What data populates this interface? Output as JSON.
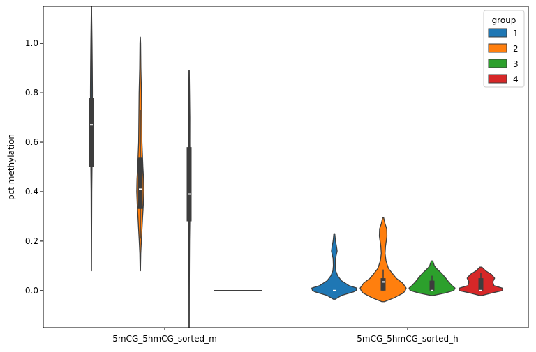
{
  "chart_data": {
    "type": "violin",
    "title": "",
    "xlabel": "",
    "ylabel": "pct methylation",
    "ylim": [
      -0.15,
      1.15
    ],
    "yticks": [
      0.0,
      0.2,
      0.4,
      0.6,
      0.8,
      1.0
    ],
    "ytick_labels": [
      "0.0",
      "0.2",
      "0.4",
      "0.6",
      "0.8",
      "1.0"
    ],
    "categories": [
      "5mCG_5hmCG_sorted_m",
      "5mCG_5hmCG_sorted_h"
    ],
    "legend": {
      "title": "group",
      "location": "upper right",
      "entries": [
        "1",
        "2",
        "3",
        "4"
      ]
    },
    "series": [
      {
        "name": "1",
        "color": "#1f77b4",
        "violins": [
          {
            "category": "5mCG_5hmCG_sorted_m",
            "min": 0.08,
            "q1": 0.5,
            "median": 0.67,
            "q3": 0.78,
            "whisker_low": 0.25,
            "whisker_high": 1.15,
            "profile": [
              [
                0.08,
                0.004
              ],
              [
                0.2,
                0.008
              ],
              [
                0.3,
                0.012
              ],
              [
                0.4,
                0.015
              ],
              [
                0.5,
                0.026
              ],
              [
                0.6,
                0.032
              ],
              [
                0.7,
                0.038
              ],
              [
                0.8,
                0.042
              ],
              [
                0.9,
                0.036
              ],
              [
                1.0,
                0.026
              ],
              [
                1.1,
                0.012
              ],
              [
                1.15,
                0.006
              ]
            ]
          },
          {
            "category": "5mCG_5hmCG_sorted_h",
            "min": -0.035,
            "q1": 0.0,
            "median": 0.0,
            "q3": 0.0,
            "whisker_low": 0.0,
            "whisker_high": 0.0,
            "profile": [
              [
                -0.035,
                0.04
              ],
              [
                -0.02,
                0.3
              ],
              [
                -0.005,
                0.82
              ],
              [
                0.0,
                0.92
              ],
              [
                0.01,
                0.95
              ],
              [
                0.02,
                0.62
              ],
              [
                0.04,
                0.3
              ],
              [
                0.06,
                0.14
              ],
              [
                0.08,
                0.06
              ],
              [
                0.1,
                0.04
              ],
              [
                0.13,
                0.05
              ],
              [
                0.16,
                0.12
              ],
              [
                0.18,
                0.09
              ],
              [
                0.2,
                0.05
              ],
              [
                0.23,
                0.02
              ]
            ]
          }
        ]
      },
      {
        "name": "2",
        "color": "#ff7f0e",
        "violins": [
          {
            "category": "5mCG_5hmCG_sorted_m",
            "min": 0.08,
            "q1": 0.33,
            "median": 0.41,
            "q3": 0.54,
            "whisker_low": 0.21,
            "whisker_high": 0.73,
            "profile": [
              [
                0.08,
                0.008
              ],
              [
                0.15,
                0.02
              ],
              [
                0.21,
                0.05
              ],
              [
                0.3,
                0.1
              ],
              [
                0.35,
                0.13
              ],
              [
                0.4,
                0.15
              ],
              [
                0.45,
                0.14
              ],
              [
                0.5,
                0.11
              ],
              [
                0.55,
                0.09
              ],
              [
                0.6,
                0.07
              ],
              [
                0.7,
                0.06
              ],
              [
                0.8,
                0.05
              ],
              [
                0.9,
                0.025
              ],
              [
                1.0,
                0.015
              ],
              [
                1.025,
                0.004
              ]
            ]
          },
          {
            "category": "5mCG_5hmCG_sorted_h",
            "min": -0.045,
            "q1": 0.0,
            "median": 0.035,
            "q3": 0.05,
            "whisker_low": 0.0,
            "whisker_high": 0.085,
            "profile": [
              [
                -0.045,
                0.05
              ],
              [
                -0.03,
                0.45
              ],
              [
                -0.01,
                0.85
              ],
              [
                0.0,
                0.93
              ],
              [
                0.01,
                0.97
              ],
              [
                0.03,
                0.82
              ],
              [
                0.05,
                0.55
              ],
              [
                0.07,
                0.38
              ],
              [
                0.09,
                0.22
              ],
              [
                0.12,
                0.12
              ],
              [
                0.15,
                0.08
              ],
              [
                0.18,
                0.1
              ],
              [
                0.22,
                0.16
              ],
              [
                0.25,
                0.15
              ],
              [
                0.27,
                0.08
              ],
              [
                0.295,
                0.02
              ]
            ]
          }
        ]
      },
      {
        "name": "3",
        "color": "#2ca02c",
        "violins": [
          {
            "category": "5mCG_5hmCG_sorted_m",
            "min": -0.15,
            "q1": 0.28,
            "median": 0.39,
            "q3": 0.58,
            "whisker_low": -0.15,
            "whisker_high": 0.89,
            "profile": [
              [
                -0.15,
                0.004
              ],
              [
                0.0,
                0.008
              ],
              [
                0.1,
                0.012
              ],
              [
                0.2,
                0.018
              ],
              [
                0.3,
                0.032
              ],
              [
                0.4,
                0.034
              ],
              [
                0.5,
                0.032
              ],
              [
                0.6,
                0.028
              ],
              [
                0.7,
                0.03
              ],
              [
                0.8,
                0.018
              ],
              [
                0.89,
                0.006
              ]
            ]
          },
          {
            "category": "5mCG_5hmCG_sorted_h",
            "min": -0.02,
            "q1": 0.0,
            "median": 0.0,
            "q3": 0.04,
            "whisker_low": 0.0,
            "whisker_high": 0.06,
            "profile": [
              [
                -0.02,
                0.05
              ],
              [
                -0.01,
                0.55
              ],
              [
                0.0,
                0.92
              ],
              [
                0.01,
                0.97
              ],
              [
                0.02,
                0.85
              ],
              [
                0.035,
                0.7
              ],
              [
                0.05,
                0.58
              ],
              [
                0.07,
                0.4
              ],
              [
                0.09,
                0.18
              ],
              [
                0.1,
                0.1
              ],
              [
                0.12,
                0.03
              ]
            ]
          }
        ]
      },
      {
        "name": "4",
        "color": "#d62728",
        "violins": [
          {
            "category": "5mCG_5hmCG_sorted_m",
            "min": 0.0,
            "q1": 0.0,
            "median": 0.0,
            "q3": 0.0,
            "whisker_low": 0.0,
            "whisker_high": 0.0,
            "flat": true,
            "profile": []
          },
          {
            "category": "5mCG_5hmCG_sorted_h",
            "min": -0.02,
            "q1": 0.0,
            "median": 0.0,
            "q3": 0.05,
            "whisker_low": 0.0,
            "whisker_high": 0.07,
            "profile": [
              [
                -0.02,
                0.05
              ],
              [
                -0.01,
                0.45
              ],
              [
                0.0,
                0.92
              ],
              [
                0.01,
                0.9
              ],
              [
                0.02,
                0.55
              ],
              [
                0.035,
                0.5
              ],
              [
                0.05,
                0.58
              ],
              [
                0.065,
                0.45
              ],
              [
                0.08,
                0.2
              ],
              [
                0.095,
                0.04
              ]
            ]
          }
        ]
      }
    ]
  }
}
